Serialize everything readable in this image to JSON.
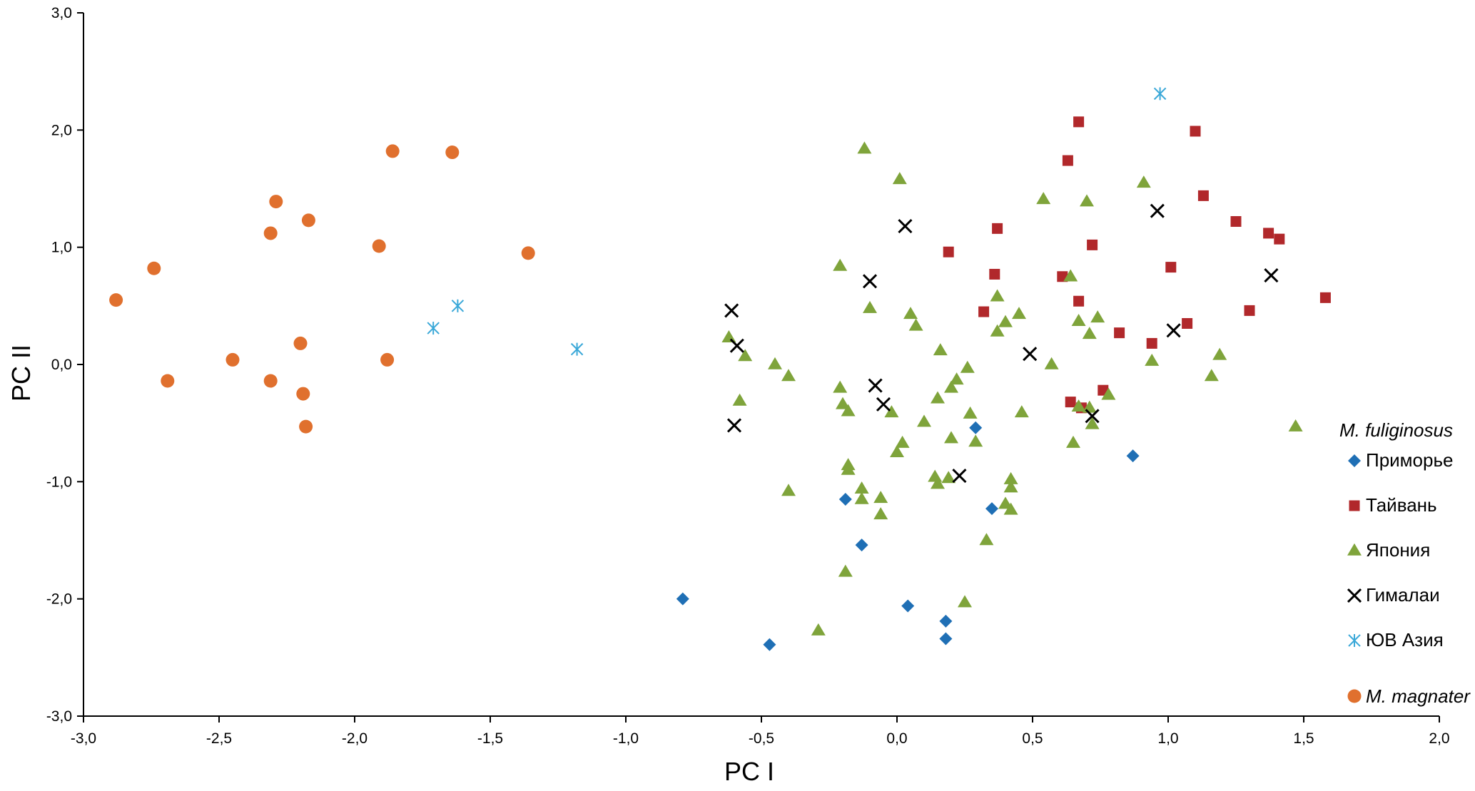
{
  "chart_data": {
    "type": "scatter",
    "xlabel": "PC I",
    "ylabel": "PC II",
    "xlim": [
      -3.0,
      2.0
    ],
    "ylim": [
      -3.0,
      3.0
    ],
    "xticks": [
      -3.0,
      -2.5,
      -2.0,
      -1.5,
      -1.0,
      -0.5,
      0.0,
      0.5,
      1.0,
      1.5,
      2.0
    ],
    "xtick_labels": [
      "-3,0",
      "-2,5",
      "-2,0",
      "-1,5",
      "-1,0",
      "-0,5",
      "0,0",
      "0,5",
      "1,0",
      "1,5",
      "2,0"
    ],
    "yticks": [
      3.0,
      2.0,
      1.0,
      0.0,
      -1.0,
      -2.0,
      -3.0
    ],
    "ytick_labels": [
      "3,0",
      "2,0",
      "1,0",
      "0,0",
      "-1,0",
      "-2,0",
      "-3,0"
    ],
    "grid": false,
    "legend": {
      "placement": "right",
      "group_headers": [
        "M. fuliginosus",
        "M. magnater"
      ]
    },
    "series": [
      {
        "name": "Приморье",
        "marker": "diamond",
        "color": "#1f6fb5",
        "points": [
          [
            0.29,
            -0.54
          ],
          [
            0.87,
            -0.78
          ],
          [
            -0.19,
            -1.15
          ],
          [
            0.35,
            -1.23
          ],
          [
            -0.13,
            -1.54
          ],
          [
            -0.79,
            -2.0
          ],
          [
            0.04,
            -2.06
          ],
          [
            0.18,
            -2.19
          ],
          [
            -0.47,
            -2.39
          ],
          [
            0.18,
            -2.34
          ]
        ]
      },
      {
        "name": "Тайвань",
        "marker": "square",
        "color": "#b1282b",
        "points": [
          [
            0.67,
            2.07
          ],
          [
            1.1,
            1.99
          ],
          [
            0.63,
            1.74
          ],
          [
            1.13,
            1.44
          ],
          [
            1.25,
            1.22
          ],
          [
            0.37,
            1.16
          ],
          [
            1.37,
            1.12
          ],
          [
            1.41,
            1.07
          ],
          [
            0.72,
            1.02
          ],
          [
            0.19,
            0.96
          ],
          [
            1.01,
            0.83
          ],
          [
            0.36,
            0.77
          ],
          [
            0.61,
            0.75
          ],
          [
            1.58,
            0.57
          ],
          [
            0.67,
            0.54
          ],
          [
            0.32,
            0.45
          ],
          [
            1.3,
            0.46
          ],
          [
            1.07,
            0.35
          ],
          [
            0.82,
            0.27
          ],
          [
            0.94,
            0.18
          ],
          [
            0.76,
            -0.22
          ],
          [
            0.64,
            -0.32
          ],
          [
            0.68,
            -0.37
          ]
        ]
      },
      {
        "name": "Япония",
        "marker": "triangle",
        "color": "#7fa43b",
        "points": [
          [
            -0.12,
            1.84
          ],
          [
            0.01,
            1.58
          ],
          [
            0.91,
            1.55
          ],
          [
            0.54,
            1.41
          ],
          [
            0.7,
            1.39
          ],
          [
            -0.21,
            0.84
          ],
          [
            0.64,
            0.75
          ],
          [
            0.37,
            0.58
          ],
          [
            -0.1,
            0.48
          ],
          [
            0.05,
            0.43
          ],
          [
            0.45,
            0.43
          ],
          [
            0.74,
            0.4
          ],
          [
            0.67,
            0.37
          ],
          [
            0.4,
            0.36
          ],
          [
            0.07,
            0.33
          ],
          [
            0.37,
            0.28
          ],
          [
            0.71,
            0.26
          ],
          [
            -0.62,
            0.23
          ],
          [
            0.16,
            0.12
          ],
          [
            1.19,
            0.08
          ],
          [
            -0.56,
            0.07
          ],
          [
            0.94,
            0.03
          ],
          [
            -0.45,
            0.0
          ],
          [
            0.57,
            0.0
          ],
          [
            0.26,
            -0.03
          ],
          [
            -0.4,
            -0.1
          ],
          [
            1.16,
            -0.1
          ],
          [
            0.22,
            -0.13
          ],
          [
            -0.21,
            -0.2
          ],
          [
            0.2,
            -0.2
          ],
          [
            0.78,
            -0.26
          ],
          [
            0.15,
            -0.29
          ],
          [
            -0.58,
            -0.31
          ],
          [
            -0.2,
            -0.34
          ],
          [
            0.67,
            -0.36
          ],
          [
            -0.18,
            -0.4
          ],
          [
            0.71,
            -0.37
          ],
          [
            -0.02,
            -0.41
          ],
          [
            0.27,
            -0.42
          ],
          [
            0.46,
            -0.41
          ],
          [
            0.1,
            -0.49
          ],
          [
            0.72,
            -0.51
          ],
          [
            1.47,
            -0.53
          ],
          [
            0.2,
            -0.63
          ],
          [
            0.29,
            -0.66
          ],
          [
            0.65,
            -0.67
          ],
          [
            0.02,
            -0.67
          ],
          [
            0.0,
            -0.75
          ],
          [
            -0.18,
            -0.86
          ],
          [
            -0.18,
            -0.9
          ],
          [
            0.14,
            -0.96
          ],
          [
            0.19,
            -0.97
          ],
          [
            0.42,
            -0.98
          ],
          [
            0.15,
            -1.02
          ],
          [
            0.42,
            -1.05
          ],
          [
            -0.4,
            -1.08
          ],
          [
            -0.13,
            -1.06
          ],
          [
            -0.06,
            -1.14
          ],
          [
            -0.13,
            -1.15
          ],
          [
            0.4,
            -1.19
          ],
          [
            0.42,
            -1.24
          ],
          [
            -0.06,
            -1.28
          ],
          [
            0.33,
            -1.5
          ],
          [
            -0.19,
            -1.77
          ],
          [
            0.25,
            -2.03
          ],
          [
            -0.29,
            -2.27
          ]
        ]
      },
      {
        "name": "Гималаи",
        "marker": "x",
        "color": "#000000",
        "points": [
          [
            0.96,
            1.31
          ],
          [
            0.03,
            1.18
          ],
          [
            1.38,
            0.76
          ],
          [
            -0.1,
            0.71
          ],
          [
            -0.61,
            0.46
          ],
          [
            1.02,
            0.29
          ],
          [
            -0.59,
            0.16
          ],
          [
            0.49,
            0.09
          ],
          [
            -0.08,
            -0.18
          ],
          [
            -0.05,
            -0.34
          ],
          [
            0.72,
            -0.44
          ],
          [
            -0.6,
            -0.52
          ],
          [
            0.23,
            -0.95
          ]
        ]
      },
      {
        "name": "ЮВ Азия",
        "marker": "asterisk",
        "color": "#3aa8d8",
        "points": [
          [
            0.97,
            2.31
          ],
          [
            -1.62,
            0.5
          ],
          [
            -1.71,
            0.31
          ],
          [
            -1.18,
            0.13
          ]
        ]
      },
      {
        "name": "M. magnater",
        "marker": "circle",
        "color": "#e0702e",
        "points": [
          [
            -1.86,
            1.82
          ],
          [
            -1.64,
            1.81
          ],
          [
            -2.29,
            1.39
          ],
          [
            -2.17,
            1.23
          ],
          [
            -2.31,
            1.12
          ],
          [
            -1.91,
            1.01
          ],
          [
            -1.36,
            0.95
          ],
          [
            -2.74,
            0.82
          ],
          [
            -2.88,
            0.55
          ],
          [
            -2.2,
            0.18
          ],
          [
            -2.45,
            0.04
          ],
          [
            -1.88,
            0.04
          ],
          [
            -2.69,
            -0.14
          ],
          [
            -2.31,
            -0.14
          ],
          [
            -2.19,
            -0.25
          ],
          [
            -2.18,
            -0.53
          ]
        ]
      }
    ]
  }
}
